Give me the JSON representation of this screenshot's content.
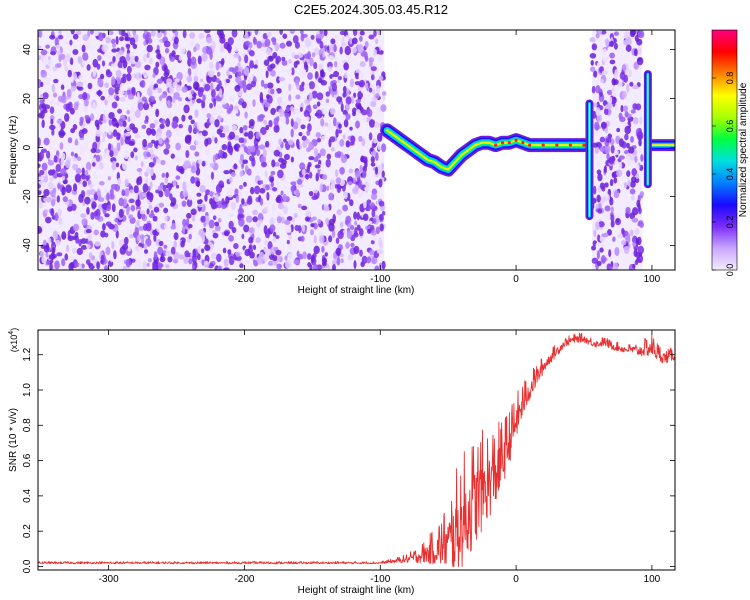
{
  "title": "C2E5.2024.305.03.45.R12",
  "chart_data": [
    {
      "type": "heatmap",
      "title": "C2E5.2024.305.03.45.R12",
      "xlabel": "Height of straight line (km)",
      "ylabel": "Frequency (Hz)",
      "xlim": [
        -352,
        117
      ],
      "ylim": [
        -50,
        48
      ],
      "x_ticks": [
        "-300",
        "-200",
        "-100",
        "0",
        "100"
      ],
      "y_ticks": [
        "-40",
        "-20",
        "0",
        "20",
        "40"
      ],
      "colorbar": {
        "label": "Normalized spectral amplitude",
        "range": [
          0.0,
          1.0
        ],
        "ticks": [
          "0.0",
          "0.2",
          "0.4",
          "0.6",
          "0.8"
        ],
        "colors": [
          "#f4ecff",
          "#c9a6ff",
          "#7a2cff",
          "#1a0aff",
          "#0080ff",
          "#00e0e0",
          "#00ff40",
          "#aaff00",
          "#ffff00",
          "#ff8000",
          "#ff0000",
          "#ff0080"
        ]
      },
      "signal_track": {
        "x": [
          -95,
          -90,
          -85,
          -80,
          -75,
          -70,
          -65,
          -60,
          -55,
          -50,
          -45,
          -40,
          -35,
          -30,
          -25,
          -20,
          -15,
          -10,
          -5,
          0,
          5,
          10,
          20,
          30,
          40,
          50
        ],
        "y": [
          7,
          5,
          3,
          1,
          -1,
          -3,
          -5,
          -6,
          -8,
          -9,
          -6,
          -3,
          -1,
          1,
          2,
          2,
          1,
          2,
          2,
          3,
          2,
          1,
          1,
          1,
          1,
          1
        ]
      },
      "noise_regions": [
        {
          "x": [
            -352,
            -97
          ],
          "level": "high"
        },
        {
          "x": [
            56,
            93
          ],
          "level": "high"
        }
      ],
      "spikes": [
        {
          "x": 54,
          "y": [
            -28,
            18
          ]
        },
        {
          "x": 97,
          "y": [
            -15,
            30
          ]
        }
      ]
    },
    {
      "type": "line",
      "xlabel": "Height of straight line (km)",
      "ylabel": "SNR (10 * v/v)",
      "multiplier": "(x10^4)",
      "multiplier_base": "(x10",
      "multiplier_exp": "4",
      "multiplier_close": ")",
      "xlim": [
        -352,
        117
      ],
      "ylim": [
        -0.02,
        1.34
      ],
      "x_ticks": [
        "-300",
        "-200",
        "-100",
        "0",
        "100"
      ],
      "y_ticks": [
        "0.0",
        "0.2",
        "0.4",
        "0.6",
        "0.8",
        "1.0",
        "1.2"
      ],
      "series": [
        {
          "color": "#e83030",
          "x": [
            -352,
            -100,
            -90,
            -80,
            -70,
            -60,
            -50,
            -45,
            -40,
            -35,
            -30,
            -25,
            -20,
            -15,
            -10,
            -5,
            0,
            5,
            10,
            15,
            20,
            25,
            30,
            35,
            40,
            45,
            50,
            55,
            60,
            65,
            70,
            75,
            80,
            85,
            90,
            95,
            100,
            105,
            110,
            117
          ],
          "y": [
            0.02,
            0.02,
            0.03,
            0.04,
            0.06,
            0.09,
            0.13,
            0.18,
            0.24,
            0.3,
            0.36,
            0.42,
            0.47,
            0.52,
            0.6,
            0.7,
            0.82,
            0.92,
            1.0,
            1.07,
            1.13,
            1.18,
            1.22,
            1.26,
            1.28,
            1.29,
            1.29,
            1.27,
            1.26,
            1.27,
            1.25,
            1.24,
            1.23,
            1.23,
            1.22,
            1.23,
            1.24,
            1.2,
            1.18,
            1.2
          ],
          "noise_amplitude": [
            0.005,
            0.005,
            0.01,
            0.02,
            0.04,
            0.08,
            0.15,
            0.22,
            0.25,
            0.25,
            0.24,
            0.22,
            0.2,
            0.18,
            0.15,
            0.12,
            0.1,
            0.08,
            0.06,
            0.05,
            0.04,
            0.03,
            0.03,
            0.02,
            0.02,
            0.02,
            0.02,
            0.02,
            0.02,
            0.02,
            0.02,
            0.02,
            0.02,
            0.02,
            0.03,
            0.04,
            0.05,
            0.04,
            0.03,
            0.03
          ]
        }
      ]
    }
  ]
}
